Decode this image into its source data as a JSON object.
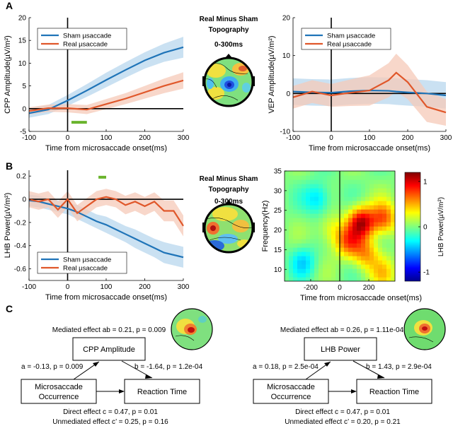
{
  "panels": {
    "A": "A",
    "B": "B",
    "C": "C"
  },
  "topography": {
    "title1": "Real Minus Sham",
    "title2": "Topography",
    "window": "0-300ms"
  },
  "colors": {
    "sham": "#1f74b8",
    "real": "#e0572a",
    "sham_band": "#b8d7ee",
    "real_band": "#f6c9b8",
    "green": "#6ab42d"
  },
  "chart_data": [
    {
      "id": "cpp",
      "type": "line",
      "title": "",
      "xlabel": "Time from microsaccade onset(ms)",
      "ylabel": "CPP Amplitude(µV/m²)",
      "xlim": [
        -100,
        300
      ],
      "ylim": [
        -5,
        20
      ],
      "xticks": [
        -100,
        0,
        100,
        200,
        300
      ],
      "yticks": [
        -5,
        0,
        5,
        10,
        15,
        20
      ],
      "legend": [
        "Sham µsaccade",
        "Real µsaccade"
      ],
      "legend_position": "top-left",
      "x": [
        -100,
        -50,
        0,
        50,
        100,
        150,
        200,
        250,
        300
      ],
      "series": [
        {
          "name": "Sham µsaccade",
          "values": [
            -1.0,
            -0.2,
            1.8,
            4.0,
            6.3,
            8.5,
            10.6,
            12.3,
            13.5
          ],
          "band": [
            1.0,
            1.0,
            1.2,
            1.4,
            1.6,
            1.7,
            1.8,
            2.0,
            2.3
          ]
        },
        {
          "name": "Real µsaccade",
          "values": [
            -0.5,
            0.1,
            0.1,
            -0.2,
            1.0,
            2.2,
            3.6,
            5.0,
            6.2
          ],
          "band": [
            0.8,
            0.8,
            0.9,
            1.0,
            1.1,
            1.2,
            1.4,
            1.6,
            1.8
          ]
        }
      ],
      "significance": [
        [
          10,
          50
        ]
      ]
    },
    {
      "id": "vep",
      "type": "line",
      "title": "",
      "xlabel": "Time from microsaccade onset(ms)",
      "ylabel": "VEP Amplitude(µV/m²)",
      "xlim": [
        -100,
        300
      ],
      "ylim": [
        -10,
        20
      ],
      "xticks": [
        -100,
        0,
        100,
        200,
        300
      ],
      "yticks": [
        -10,
        0,
        10,
        20
      ],
      "legend": [
        "Sham µsaccade",
        "Real µsaccade"
      ],
      "legend_position": "top-left",
      "x": [
        -100,
        -50,
        0,
        50,
        100,
        150,
        170,
        200,
        250,
        300
      ],
      "series": [
        {
          "name": "Sham µsaccade",
          "values": [
            0.5,
            0.3,
            0.2,
            0.6,
            0.8,
            0.7,
            0.5,
            0.3,
            0.0,
            -0.5
          ],
          "band": [
            3.5,
            3.5,
            3.5,
            3.5,
            3.5,
            3.5,
            3.5,
            3.5,
            3.5,
            3.5
          ]
        },
        {
          "name": "Real µsaccade",
          "values": [
            -1.0,
            0.5,
            -0.5,
            0.2,
            0.8,
            3.5,
            5.5,
            3.0,
            -3.5,
            -5.0
          ],
          "band": [
            3.0,
            3.0,
            3.0,
            3.5,
            4.0,
            4.5,
            5.0,
            4.5,
            4.0,
            3.5
          ]
        }
      ],
      "significance": []
    },
    {
      "id": "lhb",
      "type": "line",
      "title": "",
      "xlabel": "Time from microsaccade onset(ms)",
      "ylabel": "LHB Power(µV/m²)",
      "xlim": [
        -100,
        300
      ],
      "ylim": [
        -0.7,
        0.25
      ],
      "xticks": [
        -100,
        0,
        100,
        200,
        300
      ],
      "yticks": [
        -0.6,
        -0.4,
        -0.2,
        0,
        0.2
      ],
      "legend": [
        "Sham µsaccade",
        "Real µsaccade"
      ],
      "legend_position": "bottom-left",
      "x": [
        -100,
        -75,
        -50,
        -25,
        0,
        25,
        50,
        75,
        100,
        125,
        150,
        175,
        200,
        225,
        250,
        275,
        300
      ],
      "series": [
        {
          "name": "Sham µsaccade",
          "values": [
            -0.01,
            -0.02,
            -0.04,
            -0.06,
            -0.08,
            -0.11,
            -0.15,
            -0.19,
            -0.22,
            -0.26,
            -0.3,
            -0.34,
            -0.38,
            -0.42,
            -0.46,
            -0.48,
            -0.5
          ],
          "band": [
            0.05,
            0.05,
            0.05,
            0.05,
            0.05,
            0.06,
            0.06,
            0.06,
            0.07,
            0.07,
            0.07,
            0.08,
            0.08,
            0.08,
            0.09,
            0.09,
            0.09
          ]
        },
        {
          "name": "Real µsaccade",
          "values": [
            0.0,
            -0.02,
            0.0,
            -0.09,
            0.0,
            -0.12,
            -0.06,
            0.0,
            0.02,
            0.0,
            -0.05,
            -0.02,
            -0.06,
            -0.02,
            -0.1,
            -0.1,
            -0.23
          ],
          "band": [
            0.07,
            0.07,
            0.07,
            0.07,
            0.07,
            0.07,
            0.07,
            0.07,
            0.07,
            0.07,
            0.08,
            0.08,
            0.08,
            0.08,
            0.09,
            0.09,
            0.09
          ]
        }
      ],
      "significance": [
        [
          80,
          100
        ]
      ]
    },
    {
      "id": "tf",
      "type": "heatmap",
      "title": "",
      "xlabel": "Time from microsaccade onset(ms)",
      "ylabel": "Frequency(Hz)",
      "colorbar_label": "LHB Power(µV/m²)",
      "xlim": [
        -380,
        380
      ],
      "ylim": [
        7,
        35
      ],
      "xticks": [
        -200,
        0,
        200
      ],
      "yticks": [
        10,
        15,
        20,
        25,
        30,
        35
      ],
      "clim": [
        -1.2,
        1.2
      ],
      "cticks": [
        -1,
        0,
        1
      ],
      "blobs": [
        {
          "t": 150,
          "f": 22,
          "v": 1.0
        },
        {
          "t": 300,
          "f": 23,
          "v": 0.7
        },
        {
          "t": 60,
          "f": 17,
          "v": 0.6
        },
        {
          "t": 180,
          "f": 14,
          "v": 0.5
        },
        {
          "t": -150,
          "f": 28,
          "v": -0.4
        },
        {
          "t": -250,
          "f": 12,
          "v": -0.35
        },
        {
          "t": -60,
          "f": 20,
          "v": 0.3
        },
        {
          "t": 300,
          "f": 9,
          "v": 0.35
        }
      ]
    }
  ],
  "mediation": [
    {
      "mediated": "Mediated effect ab = 0.21, p = 0.009",
      "mediator": "CPP Amplitude",
      "a": "a = -0.13, p = 0.009",
      "b": "b = -1.64, p = 1.2e-04",
      "cause1": "Microsaccade",
      "cause2": "Occurrence",
      "outcome": "Reaction Time",
      "direct": "Direct effect c = 0.47, p = 0.01",
      "unmediated": "Unmediated effect c’ = 0.25, p = 0.16"
    },
    {
      "mediated": "Mediated effect ab = 0.26, p = 1.11e-04",
      "mediator": "LHB Power",
      "a": "a = 0.18, p = 2.5e-04",
      "b": "b = 1.43, p = 2.9e-04",
      "cause1": "Microsaccade",
      "cause2": "Occurrence",
      "outcome": "Reaction Time",
      "direct": "Direct effect c = 0.47, p = 0.01",
      "unmediated": "Unmediated effect c’ = 0.20, p = 0.21"
    }
  ]
}
